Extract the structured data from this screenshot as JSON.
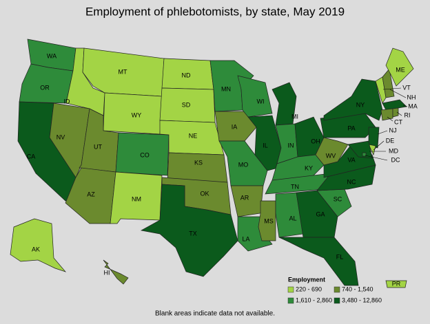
{
  "title": "Employment of phlebotomists, by state, May 2019",
  "states": [
    {
      "label": "WA",
      "color": "#2e8b3a"
    },
    {
      "label": "OR",
      "color": "#2e8b3a"
    },
    {
      "label": "CA",
      "color": "#0b5a1c"
    },
    {
      "label": "NV",
      "color": "#6b8a2e"
    },
    {
      "label": "ID",
      "color": "#a3d445"
    },
    {
      "label": "MT",
      "color": "#a3d445"
    },
    {
      "label": "WY",
      "color": "#a3d445"
    },
    {
      "label": "UT",
      "color": "#6b8a2e"
    },
    {
      "label": "AZ",
      "color": "#6b8a2e"
    },
    {
      "label": "CO",
      "color": "#2e8b3a"
    },
    {
      "label": "NM",
      "color": "#a3d445"
    },
    {
      "label": "ND",
      "color": "#a3d445"
    },
    {
      "label": "SD",
      "color": "#a3d445"
    },
    {
      "label": "NE",
      "color": "#a3d445"
    },
    {
      "label": "KS",
      "color": "#6b8a2e"
    },
    {
      "label": "OK",
      "color": "#6b8a2e"
    },
    {
      "label": "TX",
      "color": "#0b5a1c"
    },
    {
      "label": "MN",
      "color": "#2e8b3a"
    },
    {
      "label": "IA",
      "color": "#6b8a2e"
    },
    {
      "label": "MO",
      "color": "#2e8b3a"
    },
    {
      "label": "AR",
      "color": "#6b8a2e"
    },
    {
      "label": "LA",
      "color": "#2e8b3a"
    },
    {
      "label": "MS",
      "color": "#6b8a2e"
    },
    {
      "label": "WI",
      "color": "#2e8b3a"
    },
    {
      "label": "IL",
      "color": "#0b5a1c"
    },
    {
      "label": "MI",
      "color": "#0b5a1c"
    },
    {
      "label": "IN",
      "color": "#2e8b3a"
    },
    {
      "label": "OH",
      "color": "#0b5a1c"
    },
    {
      "label": "KY",
      "color": "#2e8b3a"
    },
    {
      "label": "TN",
      "color": "#2e8b3a"
    },
    {
      "label": "AL",
      "color": "#2e8b3a"
    },
    {
      "label": "GA",
      "color": "#0b5a1c"
    },
    {
      "label": "FL",
      "color": "#0b5a1c"
    },
    {
      "label": "SC",
      "color": "#2e8b3a"
    },
    {
      "label": "NC",
      "color": "#0b5a1c"
    },
    {
      "label": "VA",
      "color": "#0b5a1c"
    },
    {
      "label": "WV",
      "color": "#6b8a2e"
    },
    {
      "label": "PA",
      "color": "#0b5a1c"
    },
    {
      "label": "NY",
      "color": "#0b5a1c"
    },
    {
      "label": "VT",
      "color": "#a3d445"
    },
    {
      "label": "NH",
      "color": "#6b8a2e"
    },
    {
      "label": "ME",
      "color": "#a3d445"
    },
    {
      "label": "MA",
      "color": "#0b5a1c"
    },
    {
      "label": "CT",
      "color": "#6b8a2e"
    },
    {
      "label": "RI",
      "color": "#6b8a2e"
    },
    {
      "label": "NJ",
      "color": "#0b5a1c"
    },
    {
      "label": "DE",
      "color": "#a3d445"
    },
    {
      "label": "MD",
      "color": "#0b5a1c"
    },
    {
      "label": "DC",
      "color": "#2e8b3a"
    },
    {
      "label": "AK",
      "color": "#a3d445"
    },
    {
      "label": "HI",
      "color": "#6b8a2e"
    },
    {
      "label": "PR",
      "color": "#a3d445"
    }
  ],
  "legend": {
    "title": "Employment",
    "entries": [
      {
        "label": "220 - 690",
        "color": "#a3d445"
      },
      {
        "label": "740 - 1,540",
        "color": "#6b8a2e"
      },
      {
        "label": "1,610 - 2,860",
        "color": "#2e8b3a"
      },
      {
        "label": "3,480 - 12,860",
        "color": "#0b5a1c"
      }
    ]
  },
  "footnote": "Blank areas indicate data not available."
}
